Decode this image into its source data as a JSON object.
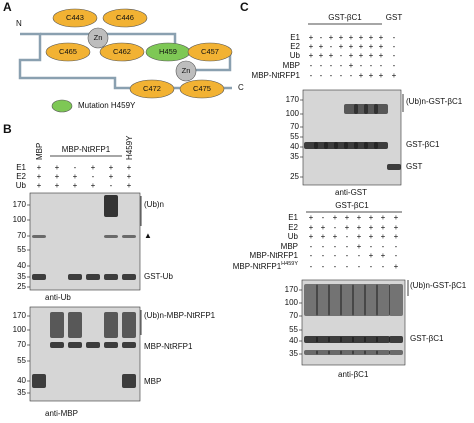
{
  "panel_a": {
    "letter": "A",
    "n_term": "N",
    "c_term": "C",
    "domains": [
      "C443",
      "C446",
      "Zn",
      "C465",
      "C462",
      "H459",
      "C457",
      "Zn",
      "C472",
      "C475"
    ],
    "legend": "Mutation H459Y"
  },
  "panel_b": {
    "letter": "B",
    "lane_mbp": "MBP",
    "lane_group": "MBP-NtRFP1",
    "lane_mutant": "H459Y",
    "rows": [
      {
        "label": "E1",
        "signs": [
          "+",
          "+",
          "-",
          "+",
          "+",
          "+"
        ]
      },
      {
        "label": "E2",
        "signs": [
          "+",
          "+",
          "+",
          "-",
          "+",
          "+"
        ]
      },
      {
        "label": "Ub",
        "signs": [
          "+",
          "+",
          "+",
          "+",
          "-",
          "+"
        ]
      }
    ],
    "blot1": {
      "markers": [
        "170",
        "100",
        "70",
        "55",
        "40",
        "35",
        "25"
      ],
      "labels": [
        "(Ub)n",
        "▲",
        "GST-Ub"
      ],
      "antibody": "anti-Ub"
    },
    "blot2": {
      "markers": [
        "170",
        "100",
        "70",
        "55",
        "40",
        "35"
      ],
      "labels": [
        "(Ub)n-MBP-NtRFP1",
        "MBP-NtRFP1",
        "MBP"
      ],
      "antibody": "anti-MBP"
    }
  },
  "panel_c": {
    "letter": "C",
    "top": {
      "header": "GST-βC1",
      "header2": "GST",
      "rows": [
        {
          "label": "E1",
          "signs": [
            "+",
            "-",
            "+",
            "+",
            "+",
            "+",
            "+",
            "+",
            "-"
          ]
        },
        {
          "label": "E2",
          "signs": [
            "+",
            "+",
            "-",
            "+",
            "+",
            "+",
            "+",
            "+",
            "-"
          ]
        },
        {
          "label": "Ub",
          "signs": [
            "+",
            "+",
            "+",
            "-",
            "+",
            "+",
            "+",
            "+",
            "-"
          ]
        },
        {
          "label": "MBP",
          "signs": [
            "-",
            "-",
            "-",
            "-",
            "+",
            "-",
            "-",
            "-",
            "-"
          ]
        },
        {
          "label": "MBP-NtRFP1",
          "signs": [
            "-",
            "-",
            "-",
            "-",
            "-",
            "+",
            "+",
            "+",
            "+"
          ]
        }
      ],
      "markers": [
        "170",
        "100",
        "70",
        "55",
        "40",
        "35",
        "25"
      ],
      "labels": [
        "(Ub)n-GST-βC1",
        "GST-βC1",
        "GST"
      ],
      "antibody": "anti-GST"
    },
    "bottom": {
      "header": "GST-βC1",
      "rows": [
        {
          "label": "E1",
          "signs": [
            "+",
            "-",
            "+",
            "+",
            "+",
            "+",
            "+",
            "+"
          ]
        },
        {
          "label": "E2",
          "signs": [
            "+",
            "+",
            "-",
            "+",
            "+",
            "+",
            "+",
            "+"
          ]
        },
        {
          "label": "Ub",
          "signs": [
            "+",
            "+",
            "+",
            "-",
            "+",
            "+",
            "+",
            "+"
          ]
        },
        {
          "label": "MBP",
          "signs": [
            "-",
            "-",
            "-",
            "-",
            "+",
            "-",
            "-",
            "-"
          ]
        },
        {
          "label": "MBP-NtRFP1",
          "signs": [
            "-",
            "-",
            "-",
            "-",
            "-",
            "+",
            "+",
            "-"
          ]
        },
        {
          "label": {
            "text": "MBP-NtRFP1",
            "sup": "H459Y"
          },
          "signs": [
            "-",
            "-",
            "-",
            "-",
            "-",
            "-",
            "-",
            "+"
          ]
        }
      ],
      "markers": [
        "170",
        "100",
        "70",
        "55",
        "40",
        "35"
      ],
      "labels": [
        "(Ub)n-GST-βC1",
        "GST-βC1"
      ],
      "antibody": "anti-βC1"
    }
  }
}
